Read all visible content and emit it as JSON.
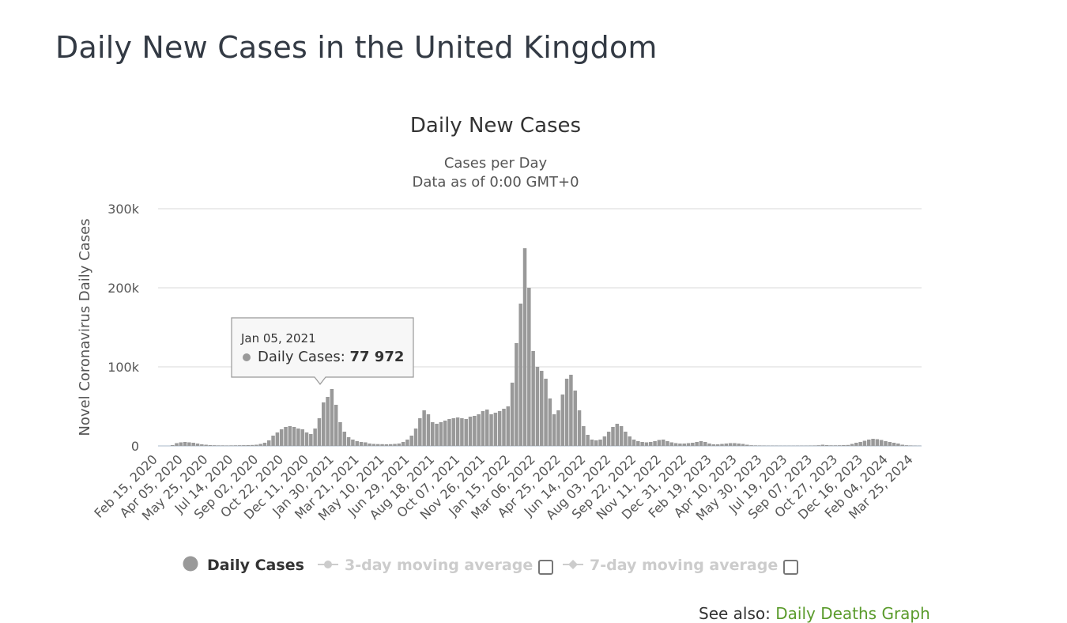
{
  "page": {
    "title": "Daily New Cases in the United Kingdom"
  },
  "chart_data": {
    "type": "bar",
    "title": "Daily New Cases",
    "subtitle": [
      "Cases per Day",
      "Data as of 0:00 GMT+0"
    ],
    "ylabel": "Novel Coronavirus Daily Cases",
    "xlabel": "",
    "ylim": [
      0,
      300000
    ],
    "yticks": [
      0,
      100000,
      200000,
      300000
    ],
    "ytick_labels": [
      "0",
      "100k",
      "200k",
      "300k"
    ],
    "xtick_labels": [
      "Feb 15, 2020",
      "Apr 05, 2020",
      "May 25, 2020",
      "Jul 14, 2020",
      "Sep 02, 2020",
      "Oct 22, 2020",
      "Dec 11, 2020",
      "Jan 30, 2021",
      "Mar 21, 2021",
      "May 10, 2021",
      "Jun 29, 2021",
      "Aug 18, 2021",
      "Oct 07, 2021",
      "Nov 26, 2021",
      "Jan 15, 2022",
      "Mar 06, 2022",
      "Apr 25, 2022",
      "Jun 14, 2022",
      "Aug 03, 2022",
      "Sep 22, 2022",
      "Nov 11, 2022",
      "Dec 31, 2022",
      "Feb 19, 2023",
      "Apr 10, 2023",
      "May 30, 2023",
      "Jul 19, 2023",
      "Sep 07, 2023",
      "Oct 27, 2023",
      "Dec 16, 2023",
      "Feb 04, 2024",
      "Mar 25, 2024"
    ],
    "x_start": "2020-02-15",
    "x_end": "2024-04-10",
    "grid": true,
    "bar_color": "#999999",
    "series": [
      {
        "name": "Daily Cases",
        "approximate_weekly_values": [
          0,
          0,
          0,
          1000,
          3500,
          4500,
          5000,
          4500,
          4000,
          3000,
          2000,
          1500,
          1000,
          800,
          600,
          600,
          500,
          600,
          700,
          800,
          900,
          1000,
          1200,
          1500,
          2500,
          4000,
          7000,
          13000,
          17000,
          21000,
          24000,
          25000,
          24000,
          22000,
          21000,
          17000,
          15000,
          22000,
          35000,
          55000,
          62000,
          72000,
          52000,
          30000,
          18000,
          11000,
          8000,
          6000,
          5000,
          4500,
          3000,
          2500,
          2300,
          2200,
          2100,
          2200,
          2500,
          3000,
          5000,
          8000,
          13000,
          22000,
          35000,
          45000,
          40000,
          30000,
          28000,
          30000,
          32000,
          34000,
          35000,
          36000,
          35000,
          34000,
          37000,
          38000,
          40000,
          44000,
          46000,
          40000,
          42000,
          44000,
          47000,
          50000,
          80000,
          130000,
          180000,
          250000,
          200000,
          120000,
          100000,
          95000,
          85000,
          60000,
          40000,
          45000,
          65000,
          85000,
          90000,
          70000,
          45000,
          25000,
          14000,
          8000,
          7000,
          8000,
          12000,
          18000,
          24000,
          28000,
          25000,
          18000,
          12000,
          8000,
          6000,
          5000,
          4500,
          5000,
          6000,
          7500,
          8000,
          6000,
          4500,
          3500,
          3000,
          3000,
          3500,
          4000,
          5000,
          6000,
          5000,
          3000,
          2000,
          2000,
          2500,
          3000,
          3500,
          3500,
          3000,
          2500,
          1500,
          800,
          600,
          500,
          400,
          300,
          300,
          300,
          250,
          250,
          250,
          250,
          300,
          300,
          300,
          400,
          500,
          800,
          1500,
          1000,
          700,
          700,
          800,
          1000,
          1200,
          2500,
          4000,
          5000,
          6500,
          8000,
          9000,
          8500,
          7500,
          6000,
          5000,
          4000,
          3000,
          1500,
          800,
          500,
          300,
          200
        ]
      },
      {
        "name": "3-day moving average",
        "visible": false
      },
      {
        "name": "7-day moving average",
        "visible": false
      }
    ],
    "tooltip": {
      "date": "Jan 05, 2021",
      "series": "Daily Cases",
      "value": "77 972"
    },
    "legend": {
      "placement": "bottom"
    }
  },
  "see_also": {
    "prefix": "See also:",
    "link": "Daily Deaths Graph"
  }
}
